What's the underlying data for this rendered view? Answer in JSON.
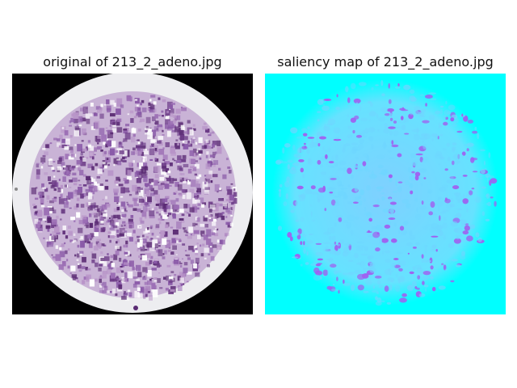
{
  "figure": {
    "left_title": "original of 213_2_adeno.jpg",
    "right_title": "saliency map of 213_2_adeno.jpg"
  },
  "colors": {
    "background": "#ffffff",
    "original_background": "#000000",
    "slide_rim": "#ededf0",
    "tissue_dark": "#5a2a73",
    "tissue_mid": "#8a5aa8",
    "tissue_light": "#b894c8",
    "saliency_base": "#00ffff",
    "saliency_low": "#6fd6ff",
    "saliency_high": "#a060f0"
  }
}
